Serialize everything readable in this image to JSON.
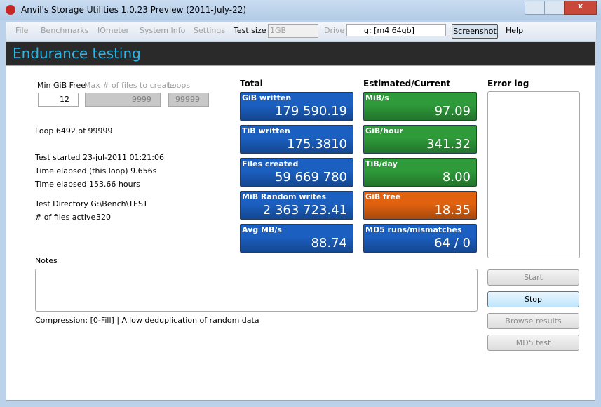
{
  "window": {
    "title": "Anvil's Storage Utilities 1.0.23 Preview (2011-July-22)"
  },
  "menu": {
    "items": [
      "File",
      "Benchmarks",
      "IOmeter",
      "System Info",
      "Settings"
    ],
    "test_size_label": "Test size",
    "test_size": "1GB",
    "drive_label": "Drive",
    "drive": "g: [m4 64gb]",
    "screenshot": "Screenshot",
    "help": "Help"
  },
  "header": {
    "title": "Endurance testing"
  },
  "settings": {
    "min_free_label": "Min GiB Free",
    "min_free": "12",
    "max_files_label": "Max # of files to create",
    "max_files": "9999",
    "loops_label": "Loops",
    "loops": "99999"
  },
  "status": {
    "loop": "Loop 6492 of 99999",
    "lines": [
      "Test started 23-jul-2011 01:21:06",
      "Time elapsed (this loop) 9.656s",
      "Time elapsed 153.66 hours"
    ],
    "directory": "Test Directory G:\\Bench\\TEST",
    "files_active_label": "# of files active",
    "files_active": "320"
  },
  "total": {
    "title": "Total",
    "tiles": [
      {
        "label": "GiB written",
        "value": "179 590.19",
        "color": "#1b5fc0"
      },
      {
        "label": "TiB written",
        "value": "175.3810",
        "color": "#1b5fc0"
      },
      {
        "label": "Files created",
        "value": "59 669 780",
        "color": "#1b5fc0"
      },
      {
        "label": "MiB Random writes",
        "value": "2 363 723.41",
        "color": "#1b5fc0"
      },
      {
        "label": "Avg MB/s",
        "value": "88.74",
        "color": "#1b5fc0"
      }
    ]
  },
  "estimated": {
    "title": "Estimated/Current",
    "tiles": [
      {
        "label": "MiB/s",
        "value": "97.09",
        "color": "#2e9a3a"
      },
      {
        "label": "GiB/hour",
        "value": "341.32",
        "color": "#2e9a3a"
      },
      {
        "label": "TiB/day",
        "value": "8.00",
        "color": "#2e9a3a"
      },
      {
        "label": "GiB free",
        "value": "18.35",
        "color": "#e0620f"
      },
      {
        "label": "MD5 runs/mismatches",
        "value": "64 / 0",
        "color": "#1b5fc0"
      }
    ]
  },
  "error_log": {
    "title": "Error log"
  },
  "notes": {
    "label": "Notes",
    "compression": "Compression: [0-Fill] | Allow deduplication of random data"
  },
  "buttons": [
    "Start",
    "Stop",
    "Browse results",
    "MD5 test"
  ]
}
